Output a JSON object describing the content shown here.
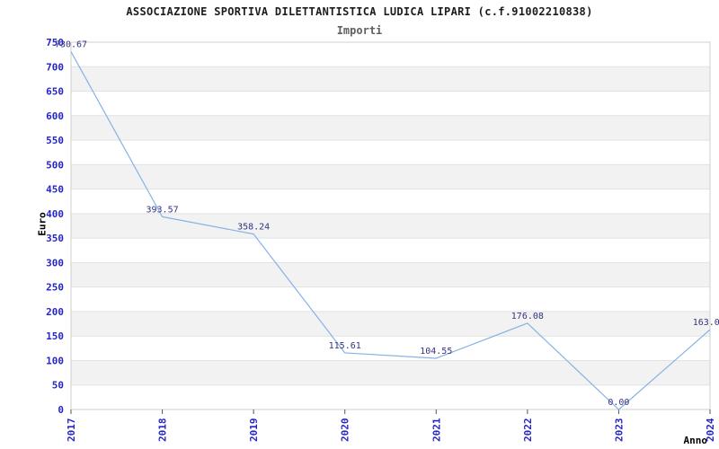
{
  "header": {
    "title": "ASSOCIAZIONE SPORTIVA DILETTANTISTICA LUDICA LIPARI (c.f.91002210838)"
  },
  "chart_data": {
    "type": "line",
    "title": "Importi",
    "xlabel": "Anno",
    "ylabel": "Euro",
    "categories": [
      "2017",
      "2018",
      "2019",
      "2020",
      "2021",
      "2022",
      "2023",
      "2024"
    ],
    "values": [
      730.67,
      393.57,
      358.24,
      115.61,
      104.55,
      176.08,
      0.0,
      163.0
    ],
    "point_labels": [
      "730.67",
      "393.57",
      "358.24",
      "115.61",
      "104.55",
      "176.08",
      "0.00",
      "163.0"
    ],
    "ylim": [
      0,
      750
    ],
    "ytick_step": 50,
    "grid": true,
    "legend": "none",
    "colors": {
      "line": "#85b2e5",
      "tick_label": "#2525c8",
      "data_label": "#333380",
      "band": "#f2f2f2",
      "gridline": "#e2e2e2",
      "border": "#cfcfcf",
      "tick_mark": "#555555"
    }
  }
}
